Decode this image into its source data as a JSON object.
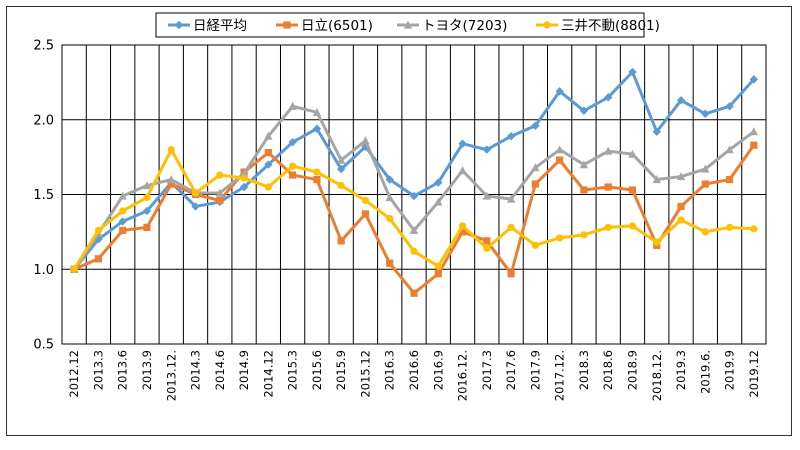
{
  "chart_data": {
    "type": "line",
    "ylim": [
      0.5,
      2.5
    ],
    "yticks": [
      "0.5",
      "1.0",
      "1.5",
      "2.0",
      "2.5"
    ],
    "grid": "on",
    "legend_position": "top",
    "categories": [
      "2012.12",
      "2013.3",
      "2013.6",
      "2013.9",
      "2013.12.",
      "2014.3",
      "2014.6",
      "2014.9",
      "2014.12",
      "2015.3",
      "2015.6",
      "2015.9",
      "2015.12",
      "2016.3",
      "2016.6",
      "2016.9",
      "2016.12.",
      "2017.3",
      "2017.6",
      "2017.9",
      "2017.12.",
      "2018.3",
      "2018.6",
      "2018.9",
      "2018.12.",
      "2019.3",
      "2019.6.",
      "2019.9",
      "2019.12"
    ],
    "series": [
      {
        "name": "日経平均",
        "color": "#5B9BD5",
        "marker": "diamond",
        "values": [
          1.0,
          1.2,
          1.32,
          1.39,
          1.58,
          1.42,
          1.45,
          1.55,
          1.7,
          1.85,
          1.94,
          1.67,
          1.82,
          1.6,
          1.49,
          1.58,
          1.84,
          1.8,
          1.89,
          1.96,
          2.19,
          2.06,
          2.15,
          2.32,
          1.92,
          2.13,
          2.04,
          2.09,
          2.27
        ]
      },
      {
        "name": "日立(6501)",
        "color": "#ED7D31",
        "marker": "square",
        "values": [
          1.0,
          1.07,
          1.26,
          1.28,
          1.57,
          1.5,
          1.46,
          1.65,
          1.78,
          1.63,
          1.6,
          1.19,
          1.37,
          1.04,
          0.84,
          0.97,
          1.25,
          1.19,
          0.97,
          1.57,
          1.73,
          1.53,
          1.55,
          1.53,
          1.16,
          1.42,
          1.57,
          1.6,
          1.83
        ]
      },
      {
        "name": "トヨタ(7203)",
        "color": "#A5A5A5",
        "marker": "triangle",
        "values": [
          1.0,
          1.24,
          1.49,
          1.56,
          1.6,
          1.51,
          1.51,
          1.64,
          1.89,
          2.09,
          2.05,
          1.73,
          1.86,
          1.48,
          1.26,
          1.45,
          1.66,
          1.49,
          1.47,
          1.68,
          1.8,
          1.7,
          1.79,
          1.77,
          1.6,
          1.62,
          1.67,
          1.8,
          1.92
        ]
      },
      {
        "name": "三井不動(8801)",
        "color": "#FFC000",
        "marker": "circle",
        "values": [
          1.0,
          1.26,
          1.39,
          1.48,
          1.8,
          1.51,
          1.63,
          1.61,
          1.55,
          1.69,
          1.65,
          1.56,
          1.46,
          1.34,
          1.12,
          1.02,
          1.29,
          1.14,
          1.28,
          1.16,
          1.21,
          1.23,
          1.28,
          1.29,
          1.18,
          1.33,
          1.25,
          1.28,
          1.27
        ]
      }
    ]
  }
}
